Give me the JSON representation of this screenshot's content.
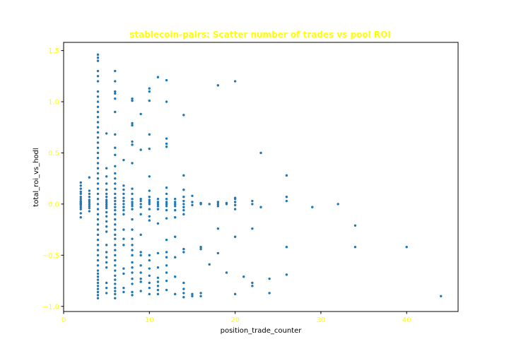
{
  "chart_data": {
    "type": "scatter",
    "title": "stablecoin-pairs: Scatter number of trades vs pool ROI",
    "xlabel": "position_trade_counter",
    "ylabel": "total_roi_vs_hodl",
    "xlim": [
      0,
      46
    ],
    "ylim": [
      -1.05,
      1.58
    ],
    "xticks": [
      0,
      10,
      20,
      30,
      40
    ],
    "yticks": [
      -1.0,
      -0.5,
      0.0,
      0.5,
      1.0,
      1.5
    ],
    "xtick_labels": [
      "0",
      "10",
      "20",
      "30",
      "40"
    ],
    "ytick_labels": [
      "−1.0",
      "−0.5",
      "0.0",
      "0.5",
      "1.0",
      "1.5"
    ],
    "grid": false,
    "legend": "none",
    "colors": {
      "marker": "#1f77b4",
      "title": "#ffff00",
      "ticks": "#ffff00",
      "axis": "#000000"
    },
    "series": [
      {
        "points": [
          [
            2,
            -0.13
          ],
          [
            2,
            -0.09
          ],
          [
            2,
            -0.05
          ],
          [
            2,
            -0.03
          ],
          [
            2,
            -0.01
          ],
          [
            2,
            0.0
          ],
          [
            2,
            0.01
          ],
          [
            2,
            0.02
          ],
          [
            2,
            0.03
          ],
          [
            2,
            0.05
          ],
          [
            2,
            0.07
          ],
          [
            2,
            0.1
          ],
          [
            2,
            0.12
          ],
          [
            2,
            0.15
          ],
          [
            2,
            0.18
          ],
          [
            2,
            0.21
          ],
          [
            3,
            -0.07
          ],
          [
            3,
            -0.04
          ],
          [
            3,
            -0.02
          ],
          [
            3,
            0.0
          ],
          [
            3,
            0.02
          ],
          [
            3,
            0.04
          ],
          [
            3,
            0.07
          ],
          [
            3,
            0.1
          ],
          [
            3,
            0.13
          ],
          [
            3,
            0.26
          ],
          [
            4,
            -0.92
          ],
          [
            4,
            -0.89
          ],
          [
            4,
            -0.86
          ],
          [
            4,
            -0.83
          ],
          [
            4,
            -0.8
          ],
          [
            4,
            -0.77
          ],
          [
            4,
            -0.74
          ],
          [
            4,
            -0.71
          ],
          [
            4,
            -0.68
          ],
          [
            4,
            -0.65
          ],
          [
            4,
            -0.6
          ],
          [
            4,
            -0.55
          ],
          [
            4,
            -0.5
          ],
          [
            4,
            -0.45
          ],
          [
            4,
            -0.4
          ],
          [
            4,
            -0.35
          ],
          [
            4,
            -0.3
          ],
          [
            4,
            -0.25
          ],
          [
            4,
            -0.2
          ],
          [
            4,
            -0.15
          ],
          [
            4,
            -0.1
          ],
          [
            4,
            -0.05
          ],
          [
            4,
            0.0
          ],
          [
            4,
            0.05
          ],
          [
            4,
            0.1
          ],
          [
            4,
            0.15
          ],
          [
            4,
            0.2
          ],
          [
            4,
            0.25
          ],
          [
            4,
            0.3
          ],
          [
            4,
            0.35
          ],
          [
            4,
            0.4
          ],
          [
            4,
            0.45
          ],
          [
            4,
            0.5
          ],
          [
            4,
            0.55
          ],
          [
            4,
            0.6
          ],
          [
            4,
            0.65
          ],
          [
            4,
            0.7
          ],
          [
            4,
            0.75
          ],
          [
            4,
            0.8
          ],
          [
            4,
            0.85
          ],
          [
            4,
            0.9
          ],
          [
            4,
            0.95
          ],
          [
            4,
            1.0
          ],
          [
            4,
            1.05
          ],
          [
            4,
            1.1
          ],
          [
            4,
            1.2
          ],
          [
            4,
            1.25
          ],
          [
            4,
            1.3
          ],
          [
            4,
            1.4
          ],
          [
            4,
            1.43
          ],
          [
            4,
            1.46
          ],
          [
            5,
            -0.87
          ],
          [
            5,
            -0.82
          ],
          [
            5,
            -0.77
          ],
          [
            5,
            -0.62
          ],
          [
            5,
            -0.57
          ],
          [
            5,
            -0.52
          ],
          [
            5,
            -0.47
          ],
          [
            5,
            -0.4
          ],
          [
            5,
            -0.27
          ],
          [
            5,
            -0.22
          ],
          [
            5,
            -0.17
          ],
          [
            5,
            -0.12
          ],
          [
            5,
            -0.08
          ],
          [
            5,
            -0.04
          ],
          [
            5,
            -0.02
          ],
          [
            5,
            0.0
          ],
          [
            5,
            0.02
          ],
          [
            5,
            0.04
          ],
          [
            5,
            0.07
          ],
          [
            5,
            0.1
          ],
          [
            5,
            0.14
          ],
          [
            5,
            0.2
          ],
          [
            5,
            0.27
          ],
          [
            5,
            0.35
          ],
          [
            5,
            0.69
          ],
          [
            6,
            -0.92
          ],
          [
            6,
            -0.88
          ],
          [
            6,
            -0.85
          ],
          [
            6,
            -0.82
          ],
          [
            6,
            -0.78
          ],
          [
            6,
            -0.74
          ],
          [
            6,
            -0.7
          ],
          [
            6,
            -0.65
          ],
          [
            6,
            -0.6
          ],
          [
            6,
            -0.55
          ],
          [
            6,
            -0.5
          ],
          [
            6,
            -0.45
          ],
          [
            6,
            -0.4
          ],
          [
            6,
            -0.34
          ],
          [
            6,
            -0.3
          ],
          [
            6,
            -0.25
          ],
          [
            6,
            -0.2
          ],
          [
            6,
            -0.15
          ],
          [
            6,
            -0.1
          ],
          [
            6,
            -0.06
          ],
          [
            6,
            -0.03
          ],
          [
            6,
            0.0
          ],
          [
            6,
            0.03
          ],
          [
            6,
            0.06
          ],
          [
            6,
            0.1
          ],
          [
            6,
            0.15
          ],
          [
            6,
            0.2
          ],
          [
            6,
            0.25
          ],
          [
            6,
            0.3
          ],
          [
            6,
            0.37
          ],
          [
            6,
            0.48
          ],
          [
            6,
            0.55
          ],
          [
            6,
            0.68
          ],
          [
            6,
            0.9
          ],
          [
            6,
            1.03
          ],
          [
            6,
            1.08
          ],
          [
            6,
            1.1
          ],
          [
            6,
            1.2
          ],
          [
            6,
            1.3
          ],
          [
            7,
            -0.86
          ],
          [
            7,
            -0.82
          ],
          [
            7,
            -0.68
          ],
          [
            7,
            -0.63
          ],
          [
            7,
            -0.4
          ],
          [
            7,
            -0.34
          ],
          [
            7,
            -0.25
          ],
          [
            7,
            -0.1
          ],
          [
            7,
            -0.06
          ],
          [
            7,
            -0.03
          ],
          [
            7,
            0.0
          ],
          [
            7,
            0.03
          ],
          [
            7,
            0.06
          ],
          [
            7,
            0.1
          ],
          [
            7,
            0.14
          ],
          [
            7,
            0.18
          ],
          [
            7,
            0.43
          ],
          [
            8,
            -0.89
          ],
          [
            8,
            -0.86
          ],
          [
            8,
            -0.78
          ],
          [
            8,
            -0.73
          ],
          [
            8,
            -0.67
          ],
          [
            8,
            -0.62
          ],
          [
            8,
            -0.57
          ],
          [
            8,
            -0.5
          ],
          [
            8,
            -0.45
          ],
          [
            8,
            -0.4
          ],
          [
            8,
            -0.34
          ],
          [
            8,
            -0.25
          ],
          [
            8,
            -0.15
          ],
          [
            8,
            -0.05
          ],
          [
            8,
            -0.02
          ],
          [
            8,
            0.0
          ],
          [
            8,
            0.02
          ],
          [
            8,
            0.05
          ],
          [
            8,
            0.1
          ],
          [
            8,
            0.15
          ],
          [
            8,
            0.4
          ],
          [
            8,
            0.58
          ],
          [
            8,
            0.61
          ],
          [
            8,
            0.77
          ],
          [
            8,
            0.79
          ],
          [
            8,
            1.01
          ],
          [
            8,
            1.03
          ],
          [
            9,
            -0.85
          ],
          [
            9,
            -0.76
          ],
          [
            9,
            -0.73
          ],
          [
            9,
            -0.67
          ],
          [
            9,
            -0.6
          ],
          [
            9,
            -0.5
          ],
          [
            9,
            -0.47
          ],
          [
            9,
            -0.3
          ],
          [
            9,
            -0.1
          ],
          [
            9,
            -0.03
          ],
          [
            9,
            0.0
          ],
          [
            9,
            0.03
          ],
          [
            9,
            0.05
          ],
          [
            9,
            0.53
          ],
          [
            9,
            0.88
          ],
          [
            10,
            -0.88
          ],
          [
            10,
            -0.82
          ],
          [
            10,
            -0.77
          ],
          [
            10,
            -0.7
          ],
          [
            10,
            -0.63
          ],
          [
            10,
            -0.55
          ],
          [
            10,
            -0.5
          ],
          [
            10,
            -0.16
          ],
          [
            10,
            -0.12
          ],
          [
            10,
            -0.05
          ],
          [
            10,
            0.0
          ],
          [
            10,
            0.02
          ],
          [
            10,
            0.04
          ],
          [
            10,
            0.07
          ],
          [
            10,
            0.13
          ],
          [
            10,
            0.27
          ],
          [
            10,
            0.54
          ],
          [
            10,
            0.68
          ],
          [
            10,
            1.01
          ],
          [
            10,
            1.1
          ],
          [
            10,
            1.13
          ],
          [
            11,
            -0.88
          ],
          [
            11,
            -0.84
          ],
          [
            11,
            -0.8
          ],
          [
            11,
            -0.76
          ],
          [
            11,
            -0.72
          ],
          [
            11,
            -0.62
          ],
          [
            11,
            -0.48
          ],
          [
            11,
            -0.19
          ],
          [
            11,
            -0.05
          ],
          [
            11,
            -0.02
          ],
          [
            11,
            0.0
          ],
          [
            11,
            0.02
          ],
          [
            11,
            0.05
          ],
          [
            11,
            1.24
          ],
          [
            12,
            -0.84
          ],
          [
            12,
            -0.75
          ],
          [
            12,
            -0.67
          ],
          [
            12,
            -0.6
          ],
          [
            12,
            -0.52
          ],
          [
            12,
            -0.47
          ],
          [
            12,
            -0.35
          ],
          [
            12,
            -0.14
          ],
          [
            12,
            -0.06
          ],
          [
            12,
            -0.02
          ],
          [
            12,
            0.0
          ],
          [
            12,
            0.02
          ],
          [
            12,
            0.05
          ],
          [
            12,
            0.1
          ],
          [
            12,
            0.16
          ],
          [
            12,
            0.56
          ],
          [
            12,
            0.59
          ],
          [
            12,
            0.64
          ],
          [
            12,
            1.0
          ],
          [
            12,
            1.21
          ],
          [
            13,
            -0.88
          ],
          [
            13,
            -0.71
          ],
          [
            13,
            -0.52
          ],
          [
            13,
            -0.32
          ],
          [
            13,
            -0.13
          ],
          [
            13,
            -0.06
          ],
          [
            13,
            -0.02
          ],
          [
            13,
            0.0
          ],
          [
            13,
            0.02
          ],
          [
            13,
            0.05
          ],
          [
            14,
            -0.91
          ],
          [
            14,
            -0.87
          ],
          [
            14,
            -0.83
          ],
          [
            14,
            -0.77
          ],
          [
            14,
            -0.47
          ],
          [
            14,
            -0.44
          ],
          [
            14,
            -0.1
          ],
          [
            14,
            -0.06
          ],
          [
            14,
            -0.03
          ],
          [
            14,
            0.0
          ],
          [
            14,
            0.03
          ],
          [
            14,
            0.07
          ],
          [
            14,
            0.14
          ],
          [
            14,
            0.28
          ],
          [
            14,
            0.87
          ],
          [
            15,
            -0.9
          ],
          [
            15,
            -0.88
          ],
          [
            15,
            -0.01
          ],
          [
            15,
            0.02
          ],
          [
            15,
            0.08
          ],
          [
            16,
            -0.9
          ],
          [
            16,
            -0.87
          ],
          [
            16,
            -0.44
          ],
          [
            16,
            -0.42
          ],
          [
            16,
            0.0
          ],
          [
            16,
            0.01
          ],
          [
            17,
            -0.59
          ],
          [
            17,
            0.0
          ],
          [
            18,
            -0.48
          ],
          [
            18,
            -0.24
          ],
          [
            18,
            -0.02
          ],
          [
            18,
            0.0
          ],
          [
            18,
            0.02
          ],
          [
            18,
            1.16
          ],
          [
            19,
            -0.67
          ],
          [
            19,
            0.0
          ],
          [
            19,
            0.01
          ],
          [
            20,
            -0.88
          ],
          [
            20,
            -0.32
          ],
          [
            20,
            -0.05
          ],
          [
            20,
            -0.01
          ],
          [
            20,
            0.02
          ],
          [
            20,
            0.05
          ],
          [
            20,
            0.06
          ],
          [
            20,
            1.2
          ],
          [
            21,
            -0.71
          ],
          [
            22,
            -0.8
          ],
          [
            22,
            -0.77
          ],
          [
            22,
            -0.24
          ],
          [
            22,
            0.0
          ],
          [
            22,
            0.03
          ],
          [
            23,
            -0.03
          ],
          [
            23,
            0.5
          ],
          [
            24,
            -0.87
          ],
          [
            24,
            -0.73
          ],
          [
            26,
            -0.69
          ],
          [
            26,
            -0.42
          ],
          [
            26,
            0.03
          ],
          [
            26,
            0.07
          ],
          [
            26,
            0.28
          ],
          [
            29,
            -0.03
          ],
          [
            32,
            0.0
          ],
          [
            34,
            -0.42
          ],
          [
            34,
            -0.21
          ],
          [
            40,
            -0.42
          ],
          [
            44,
            -0.9
          ]
        ]
      }
    ]
  }
}
